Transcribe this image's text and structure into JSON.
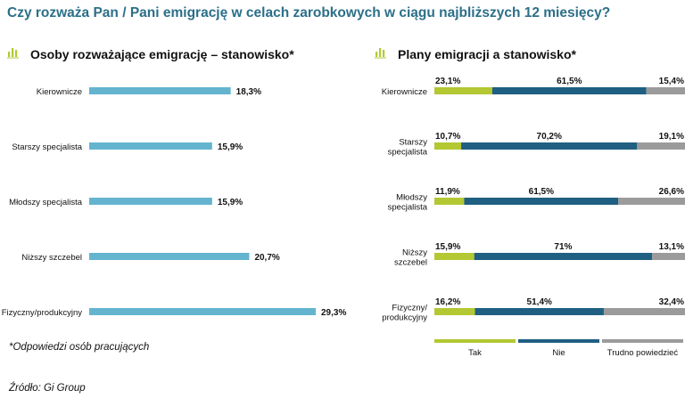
{
  "title": "Czy rozważa Pan / Pani emigrację w celach zarobkowych w ciągu najbliższych 12 miesięcy?",
  "footnote": "*Odpowiedzi osób pracujących",
  "source": "Źródło: Gi Group",
  "colors": {
    "title": "#2b6f88",
    "tak": "#b3c833",
    "nie": "#1f5f82",
    "trudno": "#9b9b9b",
    "single": "#64b4cf"
  },
  "icons": {
    "panel_icon": "bar-chart-icon"
  },
  "chart_data": [
    {
      "type": "bar",
      "orientation": "horizontal",
      "title": "Osoby rozważające emigrację – stanowisko*",
      "categories": [
        "Kierownicze",
        "Starszy specjalista",
        "Młodszy specjalista",
        "Niższy szczebel",
        "Fizyczny/produkcyjny"
      ],
      "values": [
        18.3,
        15.9,
        15.9,
        20.7,
        29.3
      ],
      "value_labels": [
        "18,3%",
        "15,9%",
        "15,9%",
        "20,7%",
        "29,3%"
      ],
      "unit": "%",
      "xlim": [
        0,
        29.3
      ],
      "grid": false
    },
    {
      "type": "bar",
      "orientation": "horizontal",
      "stacked": true,
      "title": "Plany emigracji a stanowisko*",
      "categories": [
        [
          "Kierownicze"
        ],
        [
          "Starszy",
          "specjalista"
        ],
        [
          "Młodszy",
          "specjalista"
        ],
        [
          "Niższy",
          "szczebel"
        ],
        [
          "Fizyczny/",
          "produkcyjny"
        ]
      ],
      "series": [
        {
          "name": "Tak",
          "values": [
            23.1,
            10.7,
            11.9,
            15.9,
            16.2
          ],
          "labels": [
            "23,1%",
            "10,7%",
            "11,9%",
            "15,9%",
            "16,2%"
          ]
        },
        {
          "name": "Nie",
          "values": [
            61.5,
            70.2,
            61.5,
            71,
            51.4
          ],
          "labels": [
            "61,5%",
            "70,2%",
            "61,5%",
            "71%",
            "51,4%"
          ]
        },
        {
          "name": "Trudno powiedzieć",
          "values": [
            15.4,
            19.1,
            26.6,
            13.1,
            32.4
          ],
          "labels": [
            "15,4%",
            "19,1%",
            "26,6%",
            "13,1%",
            "32,4%"
          ]
        }
      ],
      "xlim": [
        0,
        100
      ],
      "legend": "bottom",
      "grid": false
    }
  ]
}
